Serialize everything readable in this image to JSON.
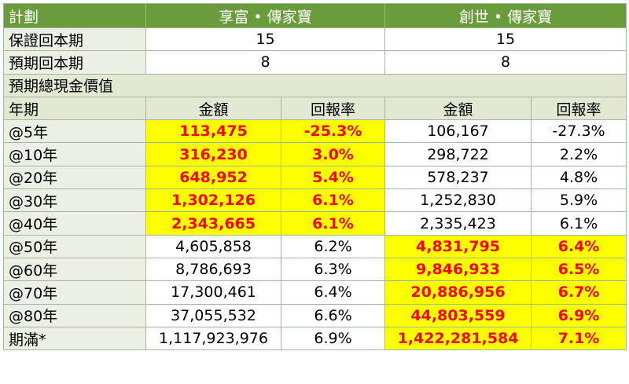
{
  "header": {
    "plan_label": "計劃",
    "product_a": "享富 • 傳家寶",
    "product_b": "創世 • 傳家寶"
  },
  "guaranteed_period": {
    "label": "保證回本期",
    "a": "15",
    "b": "15"
  },
  "expected_period": {
    "label": "預期回本期",
    "a": "8",
    "b": "8"
  },
  "section_title": "預期總現金價值",
  "columns": {
    "year": "年期",
    "amount": "金額",
    "return": "回報率"
  },
  "highlight_colors": {
    "fill": "#ffff00",
    "text": "#ff0000"
  },
  "rows": [
    {
      "year": "@5年",
      "a_amount": "113,475",
      "a_return": "-25.3%",
      "b_amount": "106,167",
      "b_return": "-27.3%",
      "highlight": "a"
    },
    {
      "year": "@10年",
      "a_amount": "316,230",
      "a_return": "3.0%",
      "b_amount": "298,722",
      "b_return": "2.2%",
      "highlight": "a"
    },
    {
      "year": "@20年",
      "a_amount": "648,952",
      "a_return": "5.4%",
      "b_amount": "578,237",
      "b_return": "4.8%",
      "highlight": "a"
    },
    {
      "year": "@30年",
      "a_amount": "1,302,126",
      "a_return": "6.1%",
      "b_amount": "1,252,830",
      "b_return": "5.9%",
      "highlight": "a"
    },
    {
      "year": "@40年",
      "a_amount": "2,343,665",
      "a_return": "6.1%",
      "b_amount": "2,335,423",
      "b_return": "6.1%",
      "highlight": "a"
    },
    {
      "year": "@50年",
      "a_amount": "4,605,858",
      "a_return": "6.2%",
      "b_amount": "4,831,795",
      "b_return": "6.4%",
      "highlight": "b"
    },
    {
      "year": "@60年",
      "a_amount": "8,786,693",
      "a_return": "6.3%",
      "b_amount": "9,846,933",
      "b_return": "6.5%",
      "highlight": "b"
    },
    {
      "year": "@70年",
      "a_amount": "17,300,461",
      "a_return": "6.4%",
      "b_amount": "20,886,956",
      "b_return": "6.7%",
      "highlight": "b"
    },
    {
      "year": "@80年",
      "a_amount": "37,055,532",
      "a_return": "6.6%",
      "b_amount": "44,803,559",
      "b_return": "6.9%",
      "highlight": "b"
    },
    {
      "year": "期滿*",
      "a_amount": "1,117,923,976",
      "a_return": "6.9%",
      "b_amount": "1,422,281,584",
      "b_return": "7.1%",
      "highlight": "b"
    }
  ]
}
